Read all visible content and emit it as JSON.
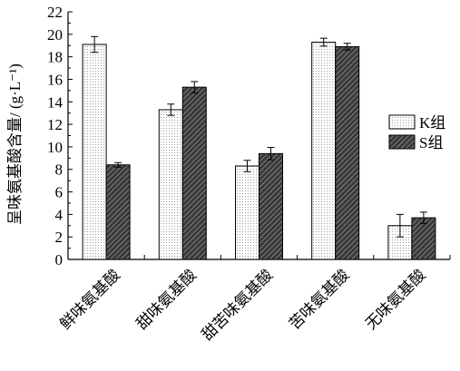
{
  "chart_data": {
    "type": "bar",
    "categories": [
      "鲜味氨基酸",
      "甜味氨基酸",
      "甜苦味氨基酸",
      "苦味氨基酸",
      "无味氨基酸"
    ],
    "series": [
      {
        "name": "K组",
        "values": [
          19.1,
          13.3,
          8.3,
          19.3,
          3.0
        ],
        "errors": [
          0.7,
          0.5,
          0.5,
          0.35,
          1.0
        ],
        "pattern": "dotted",
        "color": "#ffffff"
      },
      {
        "name": "S组",
        "values": [
          8.4,
          15.3,
          9.4,
          18.9,
          3.7
        ],
        "errors": [
          0.2,
          0.5,
          0.55,
          0.3,
          0.5
        ],
        "pattern": "hatched",
        "color": "#222222"
      }
    ],
    "ylabel": "呈味氨基酸含量/ (g·L⁻¹)",
    "ylim": [
      0,
      22
    ],
    "yticks": [
      0,
      2,
      4,
      6,
      8,
      10,
      12,
      14,
      16,
      18,
      20,
      22
    ],
    "grid": false,
    "legend_position": "right"
  }
}
